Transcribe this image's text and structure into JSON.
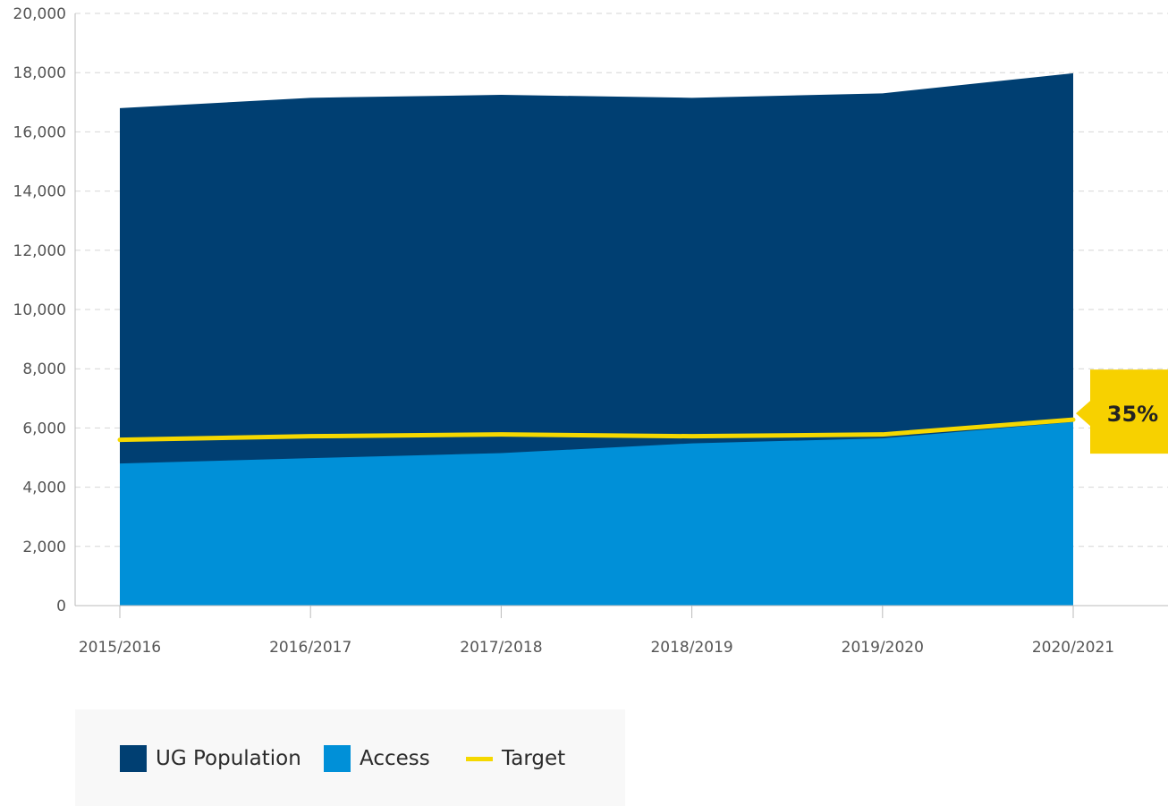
{
  "chart_data": {
    "type": "area",
    "categories": [
      "2015/2016",
      "2016/2017",
      "2017/2018",
      "2018/2019",
      "2019/2020",
      "2020/2021"
    ],
    "series": [
      {
        "name": "UG Population",
        "type": "area",
        "color": "#003f72",
        "values": [
          16800,
          17150,
          17250,
          17150,
          17300,
          17980
        ]
      },
      {
        "name": "Access",
        "type": "area",
        "color": "#0090d8",
        "values": [
          4800,
          4980,
          5150,
          5480,
          5650,
          6200
        ]
      },
      {
        "name": "Target",
        "type": "line",
        "color": "#f5d800",
        "values": [
          5600,
          5720,
          5780,
          5720,
          5780,
          6280
        ]
      }
    ],
    "ylim": [
      0,
      20000
    ],
    "yticks": [
      "0",
      "2,000",
      "4,000",
      "6,000",
      "8,000",
      "10,000",
      "12,000",
      "14,000",
      "16,000",
      "18,000",
      "20,000"
    ],
    "ytick_values": [
      0,
      2000,
      4000,
      6000,
      8000,
      10000,
      12000,
      14000,
      16000,
      18000,
      20000
    ],
    "grid": true,
    "legend_position": "bottom-left",
    "annotation": {
      "text": "35%",
      "color": "#f7d100"
    }
  },
  "legend": {
    "items": [
      {
        "label": "UG Population",
        "color": "#003f72"
      },
      {
        "label": "Access",
        "color": "#0090d8"
      },
      {
        "label": "Target",
        "color": "#f5d800"
      }
    ]
  }
}
